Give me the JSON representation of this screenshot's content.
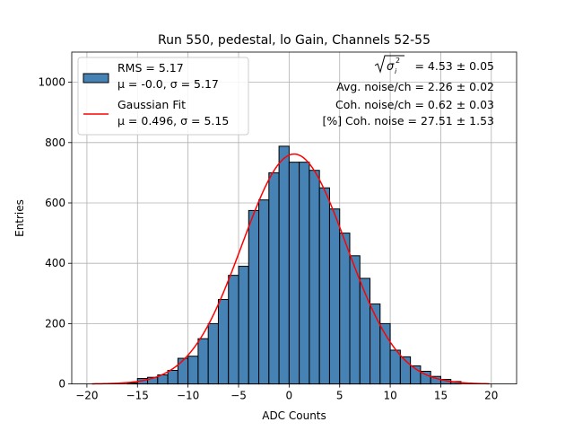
{
  "chart_data": {
    "type": "bar",
    "title": "Run 550, pedestal, lo Gain, Channels 52-55",
    "xlabel": "ADC Counts",
    "ylabel": "Entries",
    "xlim": [
      -21.5,
      22.5
    ],
    "ylim": [
      0,
      1100
    ],
    "xticks": [
      -20,
      -15,
      -10,
      -5,
      0,
      5,
      10,
      15,
      20
    ],
    "yticks": [
      0,
      200,
      400,
      600,
      800,
      1000
    ],
    "grid": true,
    "legend_position": "top-left",
    "bins": {
      "start": -16,
      "width": 1,
      "values": [
        3,
        18,
        22,
        30,
        45,
        85,
        92,
        150,
        200,
        280,
        360,
        390,
        575,
        610,
        700,
        788,
        735,
        735,
        708,
        650,
        580,
        500,
        425,
        350,
        265,
        200,
        112,
        90,
        60,
        42,
        25,
        15,
        8
      ]
    },
    "fit": {
      "mu": 0.496,
      "sigma": 5.15,
      "amplitude": 762,
      "x_range": [
        -19.5,
        19.8
      ]
    },
    "series": [
      {
        "name": "RMS = 5.17",
        "subtitle": "μ = -0.0, σ = 5.17",
        "color": "#4682b4",
        "kind": "histogram"
      },
      {
        "name": "Gaussian Fit",
        "subtitle": "μ = 0.496, σ = 5.15",
        "color": "#ff0000",
        "kind": "line"
      }
    ],
    "annotations": {
      "sqrt_label": "= 4.53 ± 0.05",
      "sigma_symbol": "σ",
      "sigma_sub": "i",
      "sigma_sup": "2",
      "line2": "Avg. noise/ch = 2.26 ± 0.02",
      "line3": "Coh. noise/ch = 0.62 ± 0.03",
      "line4": "[%] Coh. noise = 27.51 ± 1.53"
    }
  }
}
